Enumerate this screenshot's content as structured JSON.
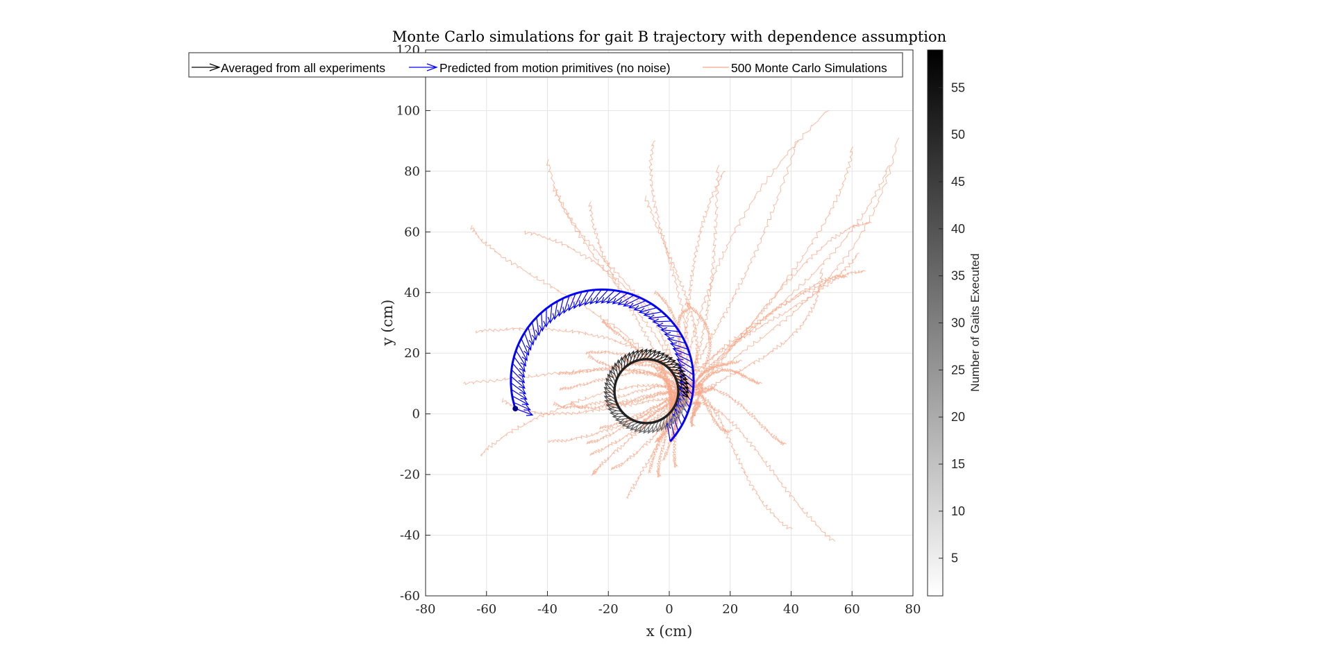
{
  "chart_data": {
    "type": "line",
    "title": "Monte Carlo simulations for gait B trajectory with dependence assumption",
    "xlabel": "x (cm)",
    "ylabel": "y (cm)",
    "xlim": [
      -80,
      80
    ],
    "ylim": [
      -60,
      120
    ],
    "xticks": [
      -80,
      -60,
      -40,
      -20,
      0,
      20,
      40,
      60,
      80
    ],
    "yticks": [
      -60,
      -40,
      -20,
      0,
      20,
      40,
      60,
      80,
      100,
      120
    ],
    "grid": true,
    "legend": {
      "placement": "top-left",
      "entries": [
        {
          "label": "Averaged from all experiments",
          "color": "#000000",
          "marker": "arrow"
        },
        {
          "label": "Predicted from motion primitives (no noise)",
          "color": "#0000ff",
          "marker": "arrow"
        },
        {
          "label": "500 Monte Carlo Simulations",
          "color": "#f7a889",
          "marker": "line"
        }
      ]
    },
    "colorbar": {
      "label": "Number of Gaits Executed",
      "range": [
        1,
        59
      ],
      "ticks": [
        5,
        10,
        15,
        20,
        25,
        30,
        35,
        40,
        45,
        50,
        55
      ],
      "colormap": "gray-reversed"
    },
    "series": [
      {
        "name": "Averaged from all experiments",
        "type": "arrow-trajectory",
        "color": "#000000",
        "center": [
          -7.5,
          7.5
        ],
        "radius": 10.5,
        "start_angle_deg": 0,
        "sweep_deg": -360,
        "count": 59
      },
      {
        "name": "Predicted from motion primitives (no noise)",
        "type": "arrow-trajectory",
        "color": "#0000ff",
        "center": [
          -22,
          11
        ],
        "radius": 30,
        "start_angle_deg": -42,
        "end_angle_deg": 198,
        "count": 59
      },
      {
        "name": "500 Monte Carlo Simulations",
        "type": "spaghetti",
        "color": "#f7a889",
        "visible_count": 60,
        "endpoints": [
          [
            -68,
            10
          ],
          [
            -64,
            27
          ],
          [
            -65,
            62
          ],
          [
            -48,
            60
          ],
          [
            -40,
            84
          ],
          [
            -38,
            75
          ],
          [
            -26,
            70
          ],
          [
            -8,
            72
          ],
          [
            -5,
            90
          ],
          [
            16,
            82
          ],
          [
            18,
            80
          ],
          [
            42,
            90
          ],
          [
            52,
            100
          ],
          [
            60,
            88
          ],
          [
            75,
            91
          ],
          [
            72,
            82
          ],
          [
            66,
            63
          ],
          [
            62,
            53
          ],
          [
            58,
            45
          ],
          [
            64,
            47
          ],
          [
            50,
            48
          ],
          [
            -62,
            -14
          ],
          [
            -55,
            5
          ],
          [
            -14,
            -28
          ],
          [
            -25,
            -20
          ],
          [
            38,
            -10
          ],
          [
            40,
            -38
          ],
          [
            54,
            -42
          ],
          [
            -3,
            -5
          ],
          [
            30,
            10
          ]
        ]
      }
    ]
  }
}
